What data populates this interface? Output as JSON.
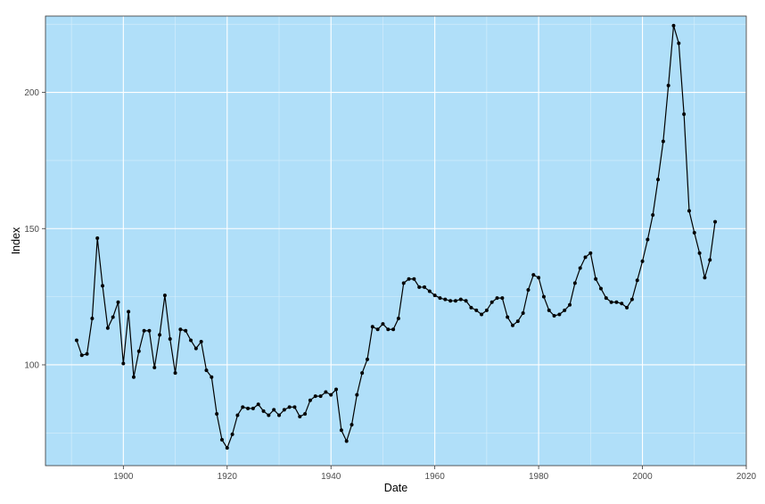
{
  "chart_data": {
    "type": "line",
    "title": "",
    "xlabel": "Date",
    "ylabel": "Index",
    "xlim": [
      1885,
      2020
    ],
    "ylim": [
      63,
      228
    ],
    "x_ticks": [
      1900,
      1920,
      1940,
      1960,
      1980,
      2000,
      2020
    ],
    "y_ticks": [
      100,
      150,
      200
    ],
    "x_minor_ticks": [
      1890,
      1910,
      1930,
      1950,
      1970,
      1990,
      2010
    ],
    "y_minor_ticks": [
      75,
      125,
      175,
      225
    ],
    "grid": true,
    "markers": true,
    "colors": {
      "panel_background": "#b0dff9",
      "grid_major": "#ffffff",
      "grid_minor": "#d8effc",
      "line": "#000000",
      "panel_border": "#333333",
      "tick_label": "#4d4d4d"
    },
    "series": [
      {
        "x": [
          1891,
          1892,
          1893,
          1894,
          1895,
          1896,
          1897,
          1898,
          1899,
          1900,
          1901,
          1902,
          1903,
          1904,
          1905,
          1906,
          1907,
          1908,
          1909,
          1910,
          1911,
          1912,
          1913,
          1914,
          1915,
          1916,
          1917,
          1918,
          1919,
          1920,
          1921,
          1922,
          1923,
          1924,
          1925,
          1926,
          1927,
          1928,
          1929,
          1930,
          1931,
          1932,
          1933,
          1934,
          1935,
          1936,
          1937,
          1938,
          1939,
          1940,
          1941,
          1942,
          1943,
          1944,
          1945,
          1946,
          1947,
          1948,
          1949,
          1950,
          1951,
          1952,
          1953,
          1954,
          1955,
          1956,
          1957,
          1958,
          1959,
          1960,
          1961,
          1962,
          1963,
          1964,
          1965,
          1966,
          1967,
          1968,
          1969,
          1970,
          1971,
          1972,
          1973,
          1974,
          1975,
          1976,
          1977,
          1978,
          1979,
          1980,
          1981,
          1982,
          1983,
          1984,
          1985,
          1986,
          1987,
          1988,
          1989,
          1990,
          1991,
          1992,
          1993,
          1994,
          1995,
          1996,
          1997,
          1998,
          1999,
          2000,
          2001,
          2002,
          2003,
          2004,
          2005,
          2006,
          2007,
          2008,
          2009,
          2010,
          2011,
          2012,
          2013,
          2014
        ],
        "y": [
          109,
          103.5,
          104,
          117,
          146.5,
          129,
          113.5,
          117.5,
          123,
          100.5,
          119.5,
          95.5,
          105,
          112.5,
          112.5,
          99,
          111,
          125.5,
          109.5,
          97,
          113,
          112.5,
          109,
          106,
          108.5,
          98,
          95.5,
          82,
          72.5,
          69.5,
          74.5,
          81.5,
          84.5,
          84,
          84,
          85.5,
          83,
          81.5,
          83.5,
          81.5,
          83.5,
          84.5,
          84.5,
          81,
          82,
          87,
          88.5,
          88.5,
          90,
          89,
          91,
          76,
          72,
          78,
          89,
          97,
          102,
          114,
          113,
          115,
          113,
          113,
          117,
          130,
          131.5,
          131.5,
          128.5,
          128.5,
          127,
          125.5,
          124.5,
          124,
          123.5,
          123.5,
          124,
          123.5,
          121,
          120,
          118.5,
          120,
          123,
          124.5,
          124.5,
          117.5,
          114.5,
          116,
          119,
          127.5,
          133,
          132,
          125,
          120,
          118,
          118.5,
          120,
          122,
          130,
          135.5,
          139.5,
          141,
          131.5,
          128,
          124.5,
          123,
          123,
          122.5,
          121,
          124,
          131,
          138,
          146,
          155,
          168,
          182,
          202.5,
          224.5,
          218,
          192,
          156.5,
          148.5,
          141,
          132,
          138.5,
          152.5
        ]
      }
    ]
  }
}
